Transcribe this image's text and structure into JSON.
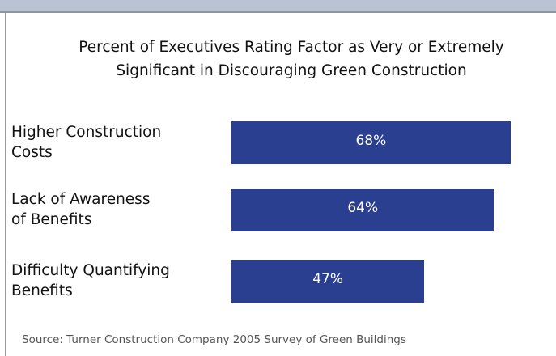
{
  "chart_data": {
    "type": "bar",
    "orientation": "horizontal",
    "title": "Percent of Executives Rating Factor as Very or Extremely",
    "subtitle": "Significant in Discouraging Green Construction",
    "categories": [
      "Higher Construction\nCosts",
      "Lack of Awareness\nof Benefits",
      "Difficulty Quantifying\nBenefits"
    ],
    "values": [
      68,
      64,
      47
    ],
    "value_labels": [
      "68%",
      "64%",
      "47%"
    ],
    "color": "#2a3f8f",
    "source": "Source: Turner Construction Company 2005 Survey of Green Buildings"
  }
}
